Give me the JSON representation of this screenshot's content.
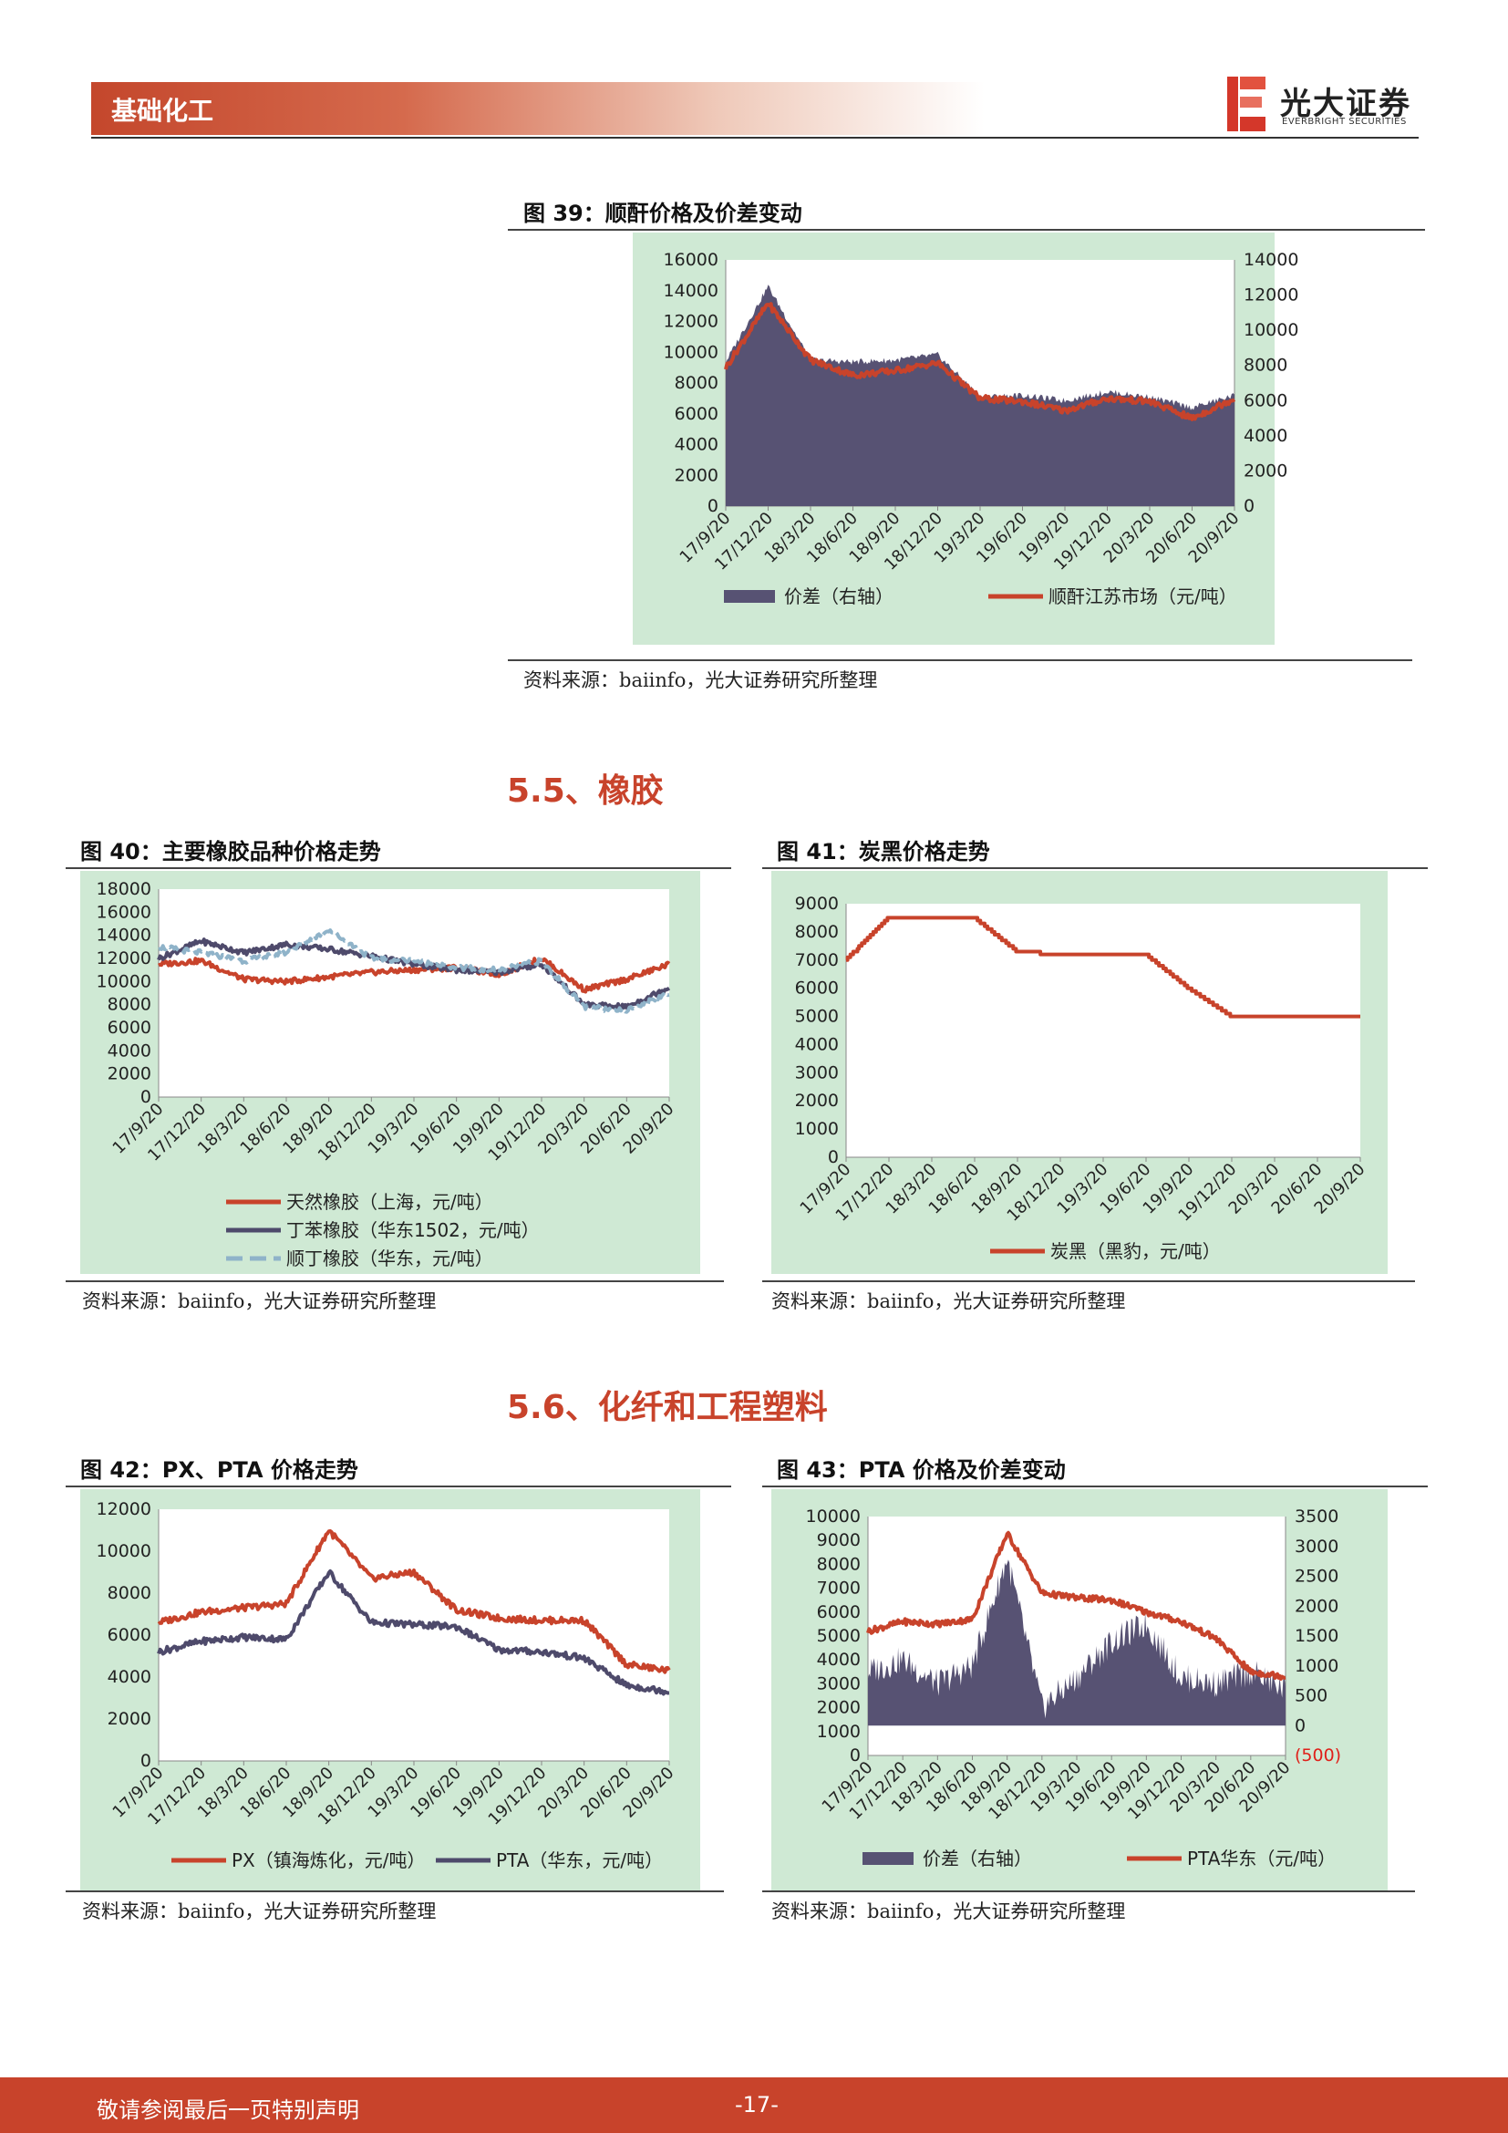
{
  "header": {
    "title": "基础化工",
    "logo_cn": "光大证券",
    "logo_en": "EVERBRIGHT SECURITIES"
  },
  "sections": {
    "s55": "5.5、橡胶",
    "s56": "5.6、化纤和工程塑料"
  },
  "figures": {
    "f39": {
      "title": "图 39：顺酐价格及价差变动",
      "source": "资料来源：baiinfo，光大证券研究所整理"
    },
    "f40": {
      "title": "图 40：主要橡胶品种价格走势",
      "source": "资料来源：baiinfo，光大证券研究所整理"
    },
    "f41": {
      "title": "图 41：炭黑价格走势",
      "source": "资料来源：baiinfo，光大证券研究所整理"
    },
    "f42": {
      "title": "图 42：PX、PTA 价格走势",
      "source": "资料来源：baiinfo，光大证券研究所整理"
    },
    "f43": {
      "title": "图 43：PTA 价格及价差变动",
      "source": "资料来源：baiinfo，光大证券研究所整理"
    }
  },
  "chart_data": [
    {
      "id": "c39",
      "type": "area",
      "x": [
        "17/9/20",
        "17/12/20",
        "18/3/20",
        "18/6/20",
        "18/9/20",
        "18/12/20",
        "19/3/20",
        "19/6/20",
        "19/9/20",
        "19/12/20",
        "20/3/20",
        "20/6/20",
        "20/9/20"
      ],
      "ylim": [
        0,
        16000
      ],
      "yticks": [
        0,
        2000,
        4000,
        6000,
        8000,
        10000,
        12000,
        14000,
        16000
      ],
      "y2lim": [
        0,
        14000
      ],
      "y2ticks": [
        0,
        2000,
        4000,
        6000,
        8000,
        10000,
        12000,
        14000
      ],
      "series": [
        {
          "name": "价差（右轴）",
          "kind": "area",
          "axis": "right",
          "color": "#575273",
          "values": [
            8200,
            12500,
            8300,
            8200,
            8300,
            8600,
            6200,
            6300,
            6000,
            6500,
            6200,
            5600,
            6300
          ]
        },
        {
          "name": "顺酐江苏市场（元/吨）",
          "kind": "line",
          "axis": "left",
          "color": "#c8432b",
          "values": [
            9000,
            13200,
            9500,
            8500,
            8800,
            9300,
            7000,
            6800,
            6200,
            7000,
            6800,
            5700,
            7000
          ]
        }
      ],
      "legend": "bottom"
    },
    {
      "id": "c40",
      "type": "line",
      "x": [
        "17/9/20",
        "17/12/20",
        "18/3/20",
        "18/6/20",
        "18/9/20",
        "18/12/20",
        "19/3/20",
        "19/6/20",
        "19/9/20",
        "19/12/20",
        "20/3/20",
        "20/6/20",
        "20/9/20"
      ],
      "ylim": [
        0,
        18000
      ],
      "yticks": [
        0,
        2000,
        4000,
        6000,
        8000,
        10000,
        12000,
        14000,
        16000,
        18000
      ],
      "series": [
        {
          "name": "天然橡胶（上海，元/吨）",
          "color": "#c8432b",
          "dash": false,
          "values": [
            11500,
            11800,
            10200,
            10000,
            10400,
            10800,
            11000,
            11200,
            10600,
            12000,
            9300,
            10200,
            11500
          ]
        },
        {
          "name": "丁苯橡胶（华东1502，元/吨）",
          "color": "#4e4a6b",
          "dash": false,
          "values": [
            12000,
            13500,
            12500,
            13200,
            12800,
            12200,
            11500,
            11000,
            10800,
            11500,
            8000,
            7800,
            9500
          ]
        },
        {
          "name": "顺丁橡胶（华东，元/吨）",
          "color": "#8fb3c9",
          "dash": true,
          "values": [
            13000,
            12500,
            11800,
            12500,
            14500,
            12000,
            11800,
            11200,
            11000,
            11800,
            7800,
            7500,
            9000
          ]
        }
      ],
      "legend": "bottom"
    },
    {
      "id": "c41",
      "type": "line",
      "x": [
        "17/9/20",
        "17/12/20",
        "18/3/20",
        "18/6/20",
        "18/9/20",
        "18/12/20",
        "19/3/20",
        "19/6/20",
        "19/9/20",
        "19/12/20",
        "20/3/20",
        "20/6/20",
        "20/9/20"
      ],
      "ylim": [
        0,
        9000
      ],
      "yticks": [
        0,
        1000,
        2000,
        3000,
        4000,
        5000,
        6000,
        7000,
        8000,
        9000
      ],
      "series": [
        {
          "name": "炭黑（黑豹，元/吨）",
          "color": "#c8432b",
          "values": [
            7000,
            8500,
            8500,
            8500,
            7300,
            7200,
            7200,
            7200,
            6000,
            5000,
            5000,
            5000,
            5000
          ]
        }
      ],
      "legend": "bottom"
    },
    {
      "id": "c42",
      "type": "line",
      "x": [
        "17/9/20",
        "17/12/20",
        "18/3/20",
        "18/6/20",
        "18/9/20",
        "18/12/20",
        "19/3/20",
        "19/6/20",
        "19/9/20",
        "19/12/20",
        "20/3/20",
        "20/6/20",
        "20/9/20"
      ],
      "ylim": [
        0,
        12000
      ],
      "yticks": [
        0,
        2000,
        4000,
        6000,
        8000,
        10000,
        12000
      ],
      "series": [
        {
          "name": "PX（镇海炼化，元/吨）",
          "color": "#c8432b",
          "values": [
            6600,
            7100,
            7300,
            7500,
            11000,
            8700,
            9000,
            7200,
            6800,
            6700,
            6700,
            4600,
            4300
          ]
        },
        {
          "name": "PTA（华东，元/吨）",
          "color": "#4e4a6b",
          "values": [
            5200,
            5700,
            5900,
            5800,
            9000,
            6600,
            6500,
            6400,
            5300,
            5200,
            4900,
            3600,
            3300
          ]
        }
      ],
      "legend": "bottom"
    },
    {
      "id": "c43",
      "type": "area",
      "x": [
        "17/9/20",
        "17/12/20",
        "18/3/20",
        "18/6/20",
        "18/9/20",
        "18/12/20",
        "19/3/20",
        "19/6/20",
        "19/9/20",
        "19/12/20",
        "20/3/20",
        "20/6/20",
        "20/9/20"
      ],
      "ylim": [
        0,
        10000
      ],
      "yticks": [
        0,
        1000,
        2000,
        3000,
        4000,
        5000,
        6000,
        7000,
        8000,
        9000,
        10000
      ],
      "y2lim": [
        -500,
        3500
      ],
      "y2ticks": [
        "(500)",
        "0",
        "500",
        "1000",
        "1500",
        "2000",
        "2500",
        "3000",
        "3500"
      ],
      "series": [
        {
          "name": "价差（右轴）",
          "kind": "area",
          "axis": "right",
          "color": "#575273",
          "values": [
            900,
            1100,
            700,
            1000,
            2800,
            300,
            800,
            1400,
            1700,
            800,
            700,
            900,
            600
          ]
        },
        {
          "name": "PTA华东（元/吨）",
          "kind": "line",
          "axis": "left",
          "color": "#c8432b",
          "values": [
            5200,
            5600,
            5500,
            5700,
            9300,
            6800,
            6600,
            6500,
            6000,
            5600,
            4900,
            3500,
            3300
          ]
        }
      ],
      "legend": "bottom"
    }
  ],
  "footer": {
    "note": "敬请参阅最后一页特别声明",
    "page": "-17-"
  }
}
